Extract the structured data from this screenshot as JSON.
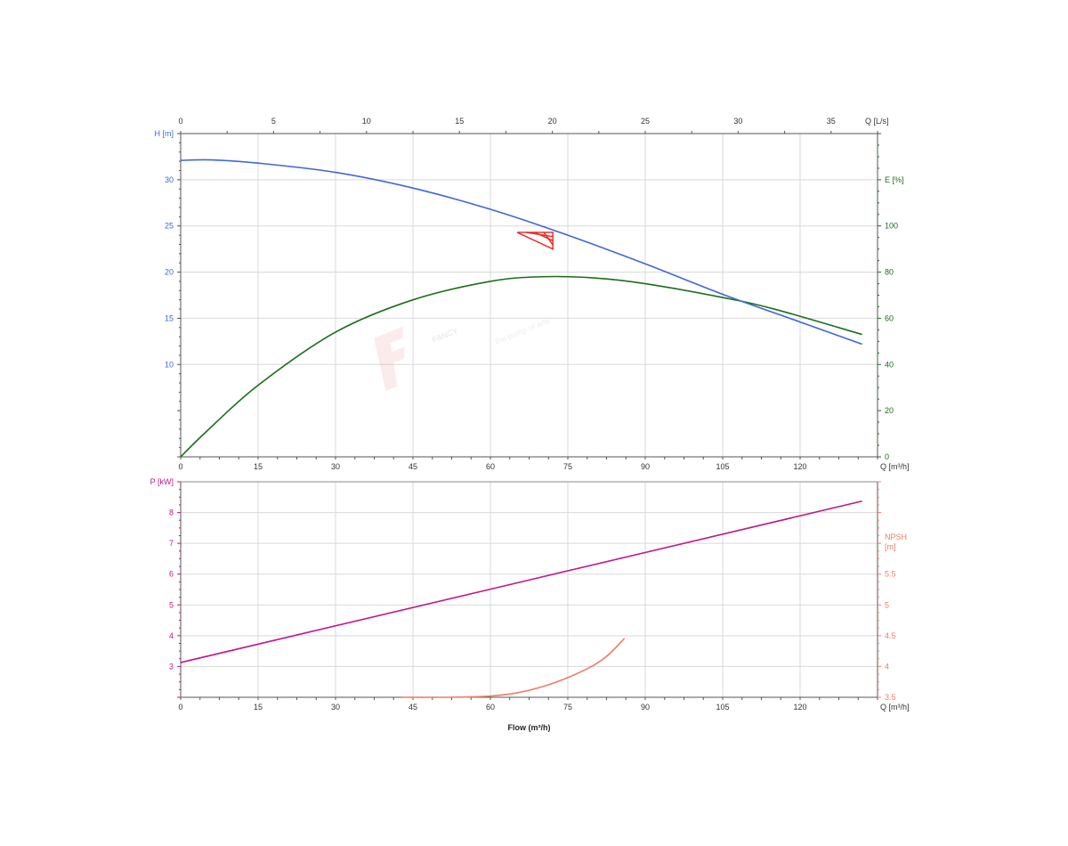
{
  "colors": {
    "head": "#3f66d8",
    "efficiency": "#1a6e1a",
    "power": "#c0168c",
    "npsh": "#f07b6a",
    "duty": "#ee2222",
    "grid": "#d9d9d9",
    "axis": "#555555"
  },
  "watermark": {
    "brand": "FANCY",
    "tagline": "the pump of arts"
  },
  "chart_data": [
    {
      "type": "line",
      "title": "",
      "xlabel": "Q [m³/h]",
      "x2label": "Q [L/s]",
      "ylabel": "H [m]",
      "y2label": "E [%]",
      "xlim": [
        0,
        135
      ],
      "x2lim": [
        0,
        37.5
      ],
      "ylim": [
        0,
        35
      ],
      "y2lim": [
        0,
        140
      ],
      "xticks": [
        0,
        15,
        30,
        45,
        60,
        75,
        90,
        105,
        120
      ],
      "x2ticks": [
        0,
        5,
        10,
        15,
        20,
        25,
        30,
        35
      ],
      "yticks": [
        10,
        15,
        20,
        25,
        30
      ],
      "y2ticks": [
        0,
        20,
        40,
        60,
        80,
        100
      ],
      "grid": true,
      "series": [
        {
          "key": "head",
          "axis": "left",
          "x": [
            0,
            6,
            15,
            30,
            45,
            60,
            75,
            90,
            105,
            120,
            132
          ],
          "y": [
            32.1,
            32.15,
            31.8,
            30.8,
            29.1,
            26.8,
            24.0,
            20.9,
            17.6,
            14.6,
            12.2
          ]
        },
        {
          "key": "efficiency",
          "axis": "right",
          "x": [
            0,
            5,
            15,
            30,
            45,
            60,
            70,
            80,
            90,
            105,
            115,
            132
          ],
          "y": [
            0,
            11,
            31,
            54,
            68,
            76,
            78,
            77.5,
            75,
            69,
            64,
            53
          ]
        }
      ],
      "duty_point": {
        "q": [
          65.2,
          72.1
        ],
        "h": [
          24.3,
          22.5
        ]
      }
    },
    {
      "type": "line",
      "title": "",
      "xlabel": "Q [m³/h]",
      "footer_label": "Flow (m³/h)",
      "ylabel": "P [kW]",
      "y2label": [
        "NPSH",
        "[m]"
      ],
      "xlim": [
        0,
        135
      ],
      "ylim": [
        2,
        9
      ],
      "y2lim": [
        3.5,
        7
      ],
      "xticks": [
        0,
        15,
        30,
        45,
        60,
        75,
        90,
        105,
        120
      ],
      "yticks": [
        3,
        4,
        5,
        6,
        7,
        8
      ],
      "y2ticks": [
        3.5,
        4,
        4.5,
        5,
        5.5
      ],
      "grid": true,
      "series": [
        {
          "key": "power",
          "axis": "left",
          "x": [
            0,
            132
          ],
          "y": [
            3.13,
            8.37
          ]
        },
        {
          "key": "npsh",
          "axis": "right",
          "x": [
            43,
            50,
            55,
            60,
            65,
            70,
            75,
            80,
            83,
            86
          ],
          "y": [
            3.5,
            3.5,
            3.505,
            3.52,
            3.57,
            3.67,
            3.82,
            4.02,
            4.2,
            4.46
          ]
        }
      ]
    }
  ]
}
